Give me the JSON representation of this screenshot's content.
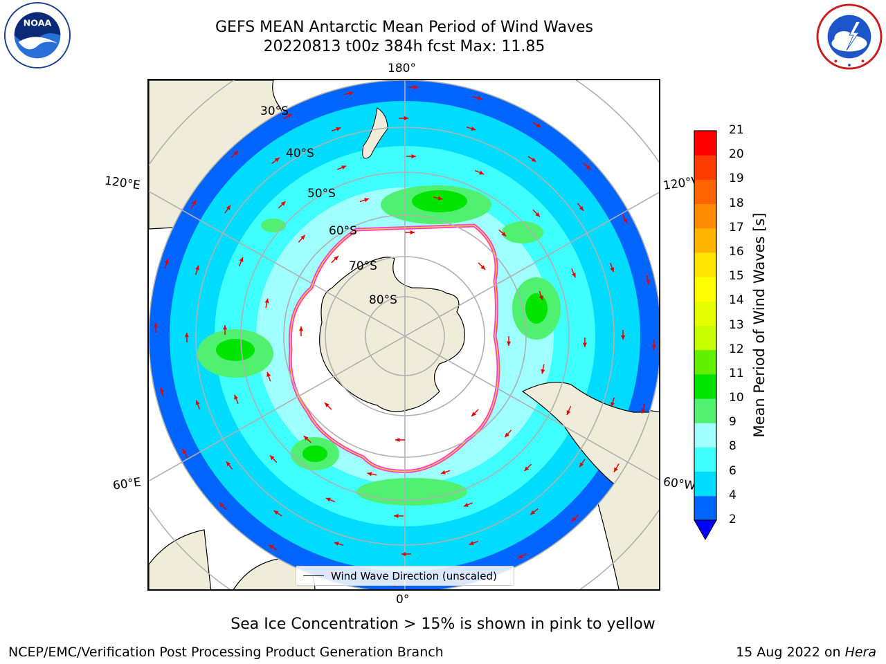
{
  "title": {
    "line1": "GEFS MEAN Antarctic Mean Period of Wind Waves",
    "line2": "20220813 t00z 384h fcst   Max: 11.85"
  },
  "logos": {
    "noaa": {
      "text": "NOAA",
      "ring_text": "NATIONAL OCEANIC AND ATMOSPHERIC ADMINISTRATION · U.S. DEPARTMENT OF COMMERCE"
    },
    "nws": {
      "ring_text": "NATIONAL WEATHER SERVICE"
    }
  },
  "map": {
    "projection": "south-polar-stereographic",
    "longitude_labels": {
      "top": "180°",
      "bottom": "0°",
      "upper_left": "120°E",
      "upper_right": "120°W",
      "lower_left": "60°E",
      "lower_right": "60°W"
    },
    "latitude_labels": [
      "30°S",
      "40°S",
      "50°S",
      "60°S",
      "70°S",
      "80°S"
    ],
    "colors": {
      "land": "#efedd9",
      "coast": "#000000",
      "graticule": "#b0b0b0",
      "arrow": "#e60000",
      "ice_edge": "#ff3ad6"
    },
    "legend": {
      "label": "Wind Wave Direction (unscaled)"
    }
  },
  "colorbar": {
    "label": "Mean Period of Wind Waves [s]",
    "ticks": [
      "2",
      "4",
      "6",
      "8",
      "9",
      "10",
      "11",
      "12",
      "13",
      "14",
      "15",
      "16",
      "17",
      "18",
      "19",
      "20",
      "21"
    ],
    "colors": [
      "#0064ff",
      "#00dcff",
      "#40ffff",
      "#a0ffff",
      "#50f070",
      "#00e400",
      "#60f000",
      "#c8ff00",
      "#e6ff00",
      "#ffff00",
      "#ffe600",
      "#ffb400",
      "#ff8c00",
      "#ff6400",
      "#ff3c00",
      "#ff0000"
    ],
    "extend_min_color": "#0000ff"
  },
  "footnote": "Sea Ice Concentration > 15% is shown in pink to yellow",
  "footer": {
    "left": "NCEP/EMC/Verification Post Processing Product Generation Branch",
    "right_date": "15 Aug 2022 on ",
    "right_host": "Hera"
  }
}
